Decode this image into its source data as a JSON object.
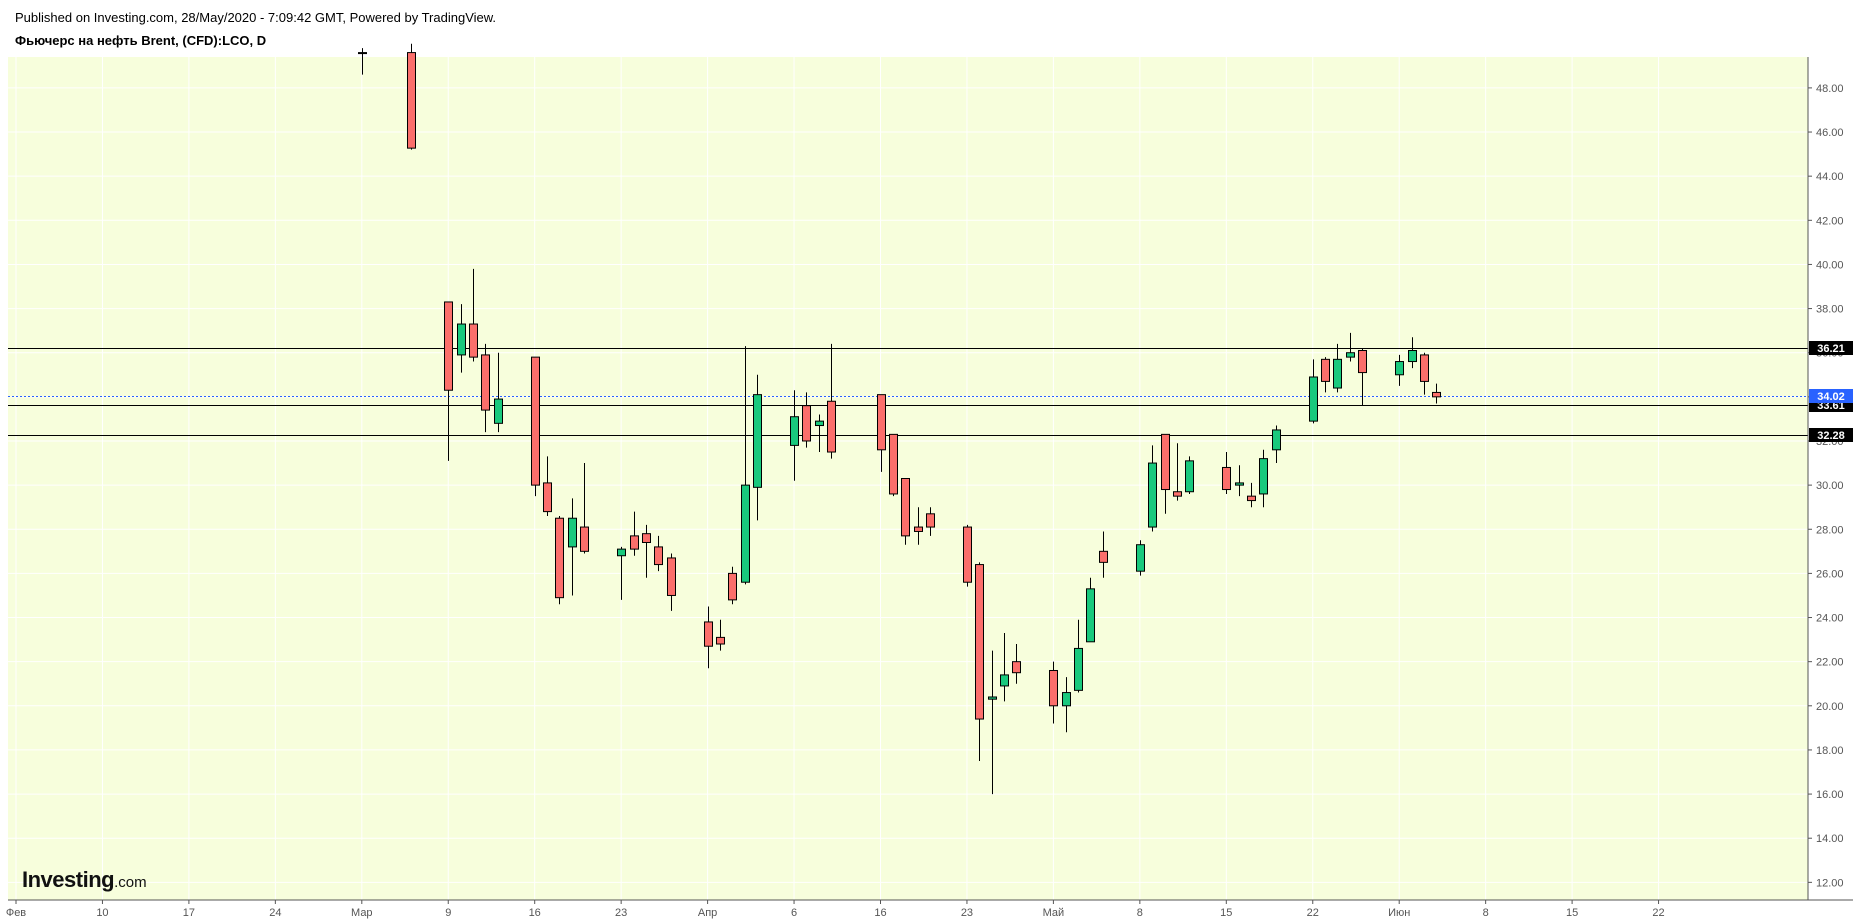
{
  "header": {
    "published": "Published on Investing.com, 28/May/2020 - 7:09:42 GMT, Powered by TradingView.",
    "symbol": "Фьючерс на нефть Brent, (CFD):LCO, D"
  },
  "logo": {
    "name": "Investing",
    "suffix": ".com"
  },
  "colors": {
    "background": "#f7fedc",
    "up": "#19c97d",
    "down": "#fb6f6b",
    "wick": "#000000",
    "current_price_line": "#2962ff",
    "grid": "#ffffff"
  },
  "chart_data": {
    "type": "candlestick",
    "title": "Фьючерс на нефть Brent, (CFD):LCO, D",
    "ylim": [
      11.2,
      49.4
    ],
    "y_ticks": [
      "12.00",
      "14.00",
      "16.00",
      "18.00",
      "20.00",
      "22.00",
      "24.00",
      "26.00",
      "28.00",
      "30.00",
      "32.00",
      "34.00",
      "36.00",
      "38.00",
      "40.00",
      "42.00",
      "44.00",
      "46.00",
      "48.00"
    ],
    "x_ticks": [
      {
        "label": "Фев",
        "date": "2020-02-03"
      },
      {
        "label": "10",
        "date": "2020-02-10"
      },
      {
        "label": "17",
        "date": "2020-02-17"
      },
      {
        "label": "24",
        "date": "2020-02-24"
      },
      {
        "label": "Мар",
        "date": "2020-03-02"
      },
      {
        "label": "9",
        "date": "2020-03-09"
      },
      {
        "label": "16",
        "date": "2020-03-16"
      },
      {
        "label": "23",
        "date": "2020-03-23"
      },
      {
        "label": "Апр",
        "date": "2020-03-30"
      },
      {
        "label": "6",
        "date": "2020-04-06"
      },
      {
        "label": "16",
        "date": "2020-04-13"
      },
      {
        "label": "23",
        "date": "2020-04-20"
      },
      {
        "label": "Май",
        "date": "2020-04-27"
      },
      {
        "label": "8",
        "date": "2020-05-04"
      },
      {
        "label": "15",
        "date": "2020-05-11"
      },
      {
        "label": "22",
        "date": "2020-05-18"
      },
      {
        "label": "Июн",
        "date": "2020-05-25"
      },
      {
        "label": "8",
        "date": "2020-06-01"
      },
      {
        "label": "15",
        "date": "2020-06-08"
      },
      {
        "label": "22",
        "date": "2020-06-15"
      }
    ],
    "horizontal_lines": [
      {
        "price": 36.21,
        "label": "36.21",
        "style": "solid"
      },
      {
        "price": 33.61,
        "label": "33.61",
        "style": "solid"
      },
      {
        "price": 32.28,
        "label": "32.28",
        "style": "solid"
      },
      {
        "price": 34.02,
        "label": "34.02",
        "style": "dotted-current"
      }
    ],
    "candles": [
      {
        "date": "2020-03-02",
        "open": 49.6,
        "high": 49.8,
        "low": 48.6,
        "close": 49.6
      },
      {
        "date": "2020-03-06",
        "open": 49.6,
        "high": 50.0,
        "low": 45.2,
        "close": 45.27
      },
      {
        "date": "2020-03-09",
        "open": 38.3,
        "high": 38.3,
        "low": 31.1,
        "close": 34.3
      },
      {
        "date": "2020-03-10",
        "open": 35.9,
        "high": 38.2,
        "low": 35.1,
        "close": 37.3
      },
      {
        "date": "2020-03-11",
        "open": 37.3,
        "high": 39.8,
        "low": 35.6,
        "close": 35.8
      },
      {
        "date": "2020-03-12",
        "open": 35.9,
        "high": 36.4,
        "low": 32.4,
        "close": 33.4
      },
      {
        "date": "2020-03-13",
        "open": 32.8,
        "high": 36.0,
        "low": 32.4,
        "close": 33.9
      },
      {
        "date": "2020-03-16",
        "open": 35.8,
        "high": 35.8,
        "low": 29.5,
        "close": 30.0
      },
      {
        "date": "2020-03-17",
        "open": 30.1,
        "high": 31.3,
        "low": 28.6,
        "close": 28.8
      },
      {
        "date": "2020-03-18",
        "open": 28.5,
        "high": 28.6,
        "low": 24.6,
        "close": 24.9
      },
      {
        "date": "2020-03-19",
        "open": 27.2,
        "high": 29.4,
        "low": 25.0,
        "close": 28.5
      },
      {
        "date": "2020-03-20",
        "open": 28.1,
        "high": 31.0,
        "low": 26.9,
        "close": 27.0
      },
      {
        "date": "2020-03-23",
        "open": 26.8,
        "high": 27.2,
        "low": 24.8,
        "close": 27.1
      },
      {
        "date": "2020-03-24",
        "open": 27.7,
        "high": 28.8,
        "low": 26.8,
        "close": 27.1
      },
      {
        "date": "2020-03-25",
        "open": 27.8,
        "high": 28.2,
        "low": 25.8,
        "close": 27.4
      },
      {
        "date": "2020-03-26",
        "open": 27.2,
        "high": 27.7,
        "low": 26.1,
        "close": 26.4
      },
      {
        "date": "2020-03-27",
        "open": 26.7,
        "high": 26.9,
        "low": 24.3,
        "close": 25.0
      },
      {
        "date": "2020-03-30",
        "open": 23.8,
        "high": 24.5,
        "low": 21.7,
        "close": 22.7
      },
      {
        "date": "2020-03-31",
        "open": 23.1,
        "high": 23.9,
        "low": 22.5,
        "close": 22.8
      },
      {
        "date": "2020-04-01",
        "open": 26.0,
        "high": 26.3,
        "low": 24.6,
        "close": 24.8
      },
      {
        "date": "2020-04-02",
        "open": 25.6,
        "high": 36.3,
        "low": 25.5,
        "close": 30.0
      },
      {
        "date": "2020-04-03",
        "open": 29.9,
        "high": 35.0,
        "low": 28.4,
        "close": 34.1
      },
      {
        "date": "2020-04-06",
        "open": 31.8,
        "high": 34.3,
        "low": 30.2,
        "close": 33.1
      },
      {
        "date": "2020-04-07",
        "open": 33.6,
        "high": 34.2,
        "low": 31.7,
        "close": 32.0
      },
      {
        "date": "2020-04-08",
        "open": 32.7,
        "high": 33.2,
        "low": 31.5,
        "close": 32.9
      },
      {
        "date": "2020-04-09",
        "open": 33.8,
        "high": 36.4,
        "low": 31.2,
        "close": 31.5
      },
      {
        "date": "2020-04-13",
        "open": 34.1,
        "high": 34.1,
        "low": 30.6,
        "close": 31.6
      },
      {
        "date": "2020-04-14",
        "open": 32.3,
        "high": 32.3,
        "low": 29.5,
        "close": 29.6
      },
      {
        "date": "2020-04-15",
        "open": 30.3,
        "high": 30.3,
        "low": 27.3,
        "close": 27.7
      },
      {
        "date": "2020-04-16",
        "open": 28.1,
        "high": 29.0,
        "low": 27.3,
        "close": 27.9
      },
      {
        "date": "2020-04-17",
        "open": 28.7,
        "high": 29.0,
        "low": 27.7,
        "close": 28.1
      },
      {
        "date": "2020-04-20",
        "open": 28.1,
        "high": 28.2,
        "low": 25.4,
        "close": 25.6
      },
      {
        "date": "2020-04-21",
        "open": 26.4,
        "high": 26.5,
        "low": 17.5,
        "close": 19.4
      },
      {
        "date": "2020-04-22",
        "open": 20.3,
        "high": 22.5,
        "low": 16.0,
        "close": 20.4
      },
      {
        "date": "2020-04-23",
        "open": 20.9,
        "high": 23.3,
        "low": 20.2,
        "close": 21.4
      },
      {
        "date": "2020-04-24",
        "open": 22.0,
        "high": 22.8,
        "low": 21.0,
        "close": 21.5
      },
      {
        "date": "2020-04-27",
        "open": 21.6,
        "high": 22.0,
        "low": 19.2,
        "close": 20.0
      },
      {
        "date": "2020-04-28",
        "open": 20.0,
        "high": 21.3,
        "low": 18.8,
        "close": 20.6
      },
      {
        "date": "2020-04-29",
        "open": 20.7,
        "high": 23.9,
        "low": 20.6,
        "close": 22.6
      },
      {
        "date": "2020-04-30",
        "open": 22.9,
        "high": 25.8,
        "low": 22.9,
        "close": 25.3
      },
      {
        "date": "2020-05-01",
        "open": 27.0,
        "high": 27.9,
        "low": 25.8,
        "close": 26.5
      },
      {
        "date": "2020-05-04",
        "open": 26.1,
        "high": 27.5,
        "low": 25.9,
        "close": 27.3
      },
      {
        "date": "2020-05-05",
        "open": 28.1,
        "high": 31.8,
        "low": 27.9,
        "close": 31.0
      },
      {
        "date": "2020-05-06",
        "open": 32.3,
        "high": 32.3,
        "low": 28.7,
        "close": 29.8
      },
      {
        "date": "2020-05-07",
        "open": 29.7,
        "high": 31.9,
        "low": 29.3,
        "close": 29.5
      },
      {
        "date": "2020-05-08",
        "open": 29.7,
        "high": 31.3,
        "low": 29.6,
        "close": 31.1
      },
      {
        "date": "2020-05-11",
        "open": 30.8,
        "high": 31.5,
        "low": 29.6,
        "close": 29.8
      },
      {
        "date": "2020-05-12",
        "open": 30.0,
        "high": 30.9,
        "low": 29.5,
        "close": 30.1
      },
      {
        "date": "2020-05-13",
        "open": 29.5,
        "high": 30.1,
        "low": 29.0,
        "close": 29.3
      },
      {
        "date": "2020-05-14",
        "open": 29.6,
        "high": 31.6,
        "low": 29.0,
        "close": 31.2
      },
      {
        "date": "2020-05-15",
        "open": 31.6,
        "high": 32.7,
        "low": 31.0,
        "close": 32.5
      },
      {
        "date": "2020-05-18",
        "open": 32.9,
        "high": 35.7,
        "low": 32.8,
        "close": 34.9
      },
      {
        "date": "2020-05-19",
        "open": 35.7,
        "high": 35.8,
        "low": 34.2,
        "close": 34.7
      },
      {
        "date": "2020-05-20",
        "open": 34.4,
        "high": 36.4,
        "low": 34.2,
        "close": 35.7
      },
      {
        "date": "2020-05-21",
        "open": 35.8,
        "high": 36.9,
        "low": 35.6,
        "close": 36.0
      },
      {
        "date": "2020-05-22",
        "open": 36.1,
        "high": 36.2,
        "low": 33.6,
        "close": 35.1
      },
      {
        "date": "2020-05-25",
        "open": 35.0,
        "high": 35.9,
        "low": 34.5,
        "close": 35.6
      },
      {
        "date": "2020-05-26",
        "open": 35.6,
        "high": 36.7,
        "low": 35.3,
        "close": 36.1
      },
      {
        "date": "2020-05-27",
        "open": 35.9,
        "high": 36.0,
        "low": 34.1,
        "close": 34.7
      },
      {
        "date": "2020-05-28",
        "open": 34.2,
        "high": 34.6,
        "low": 33.7,
        "close": 34.0
      }
    ]
  }
}
